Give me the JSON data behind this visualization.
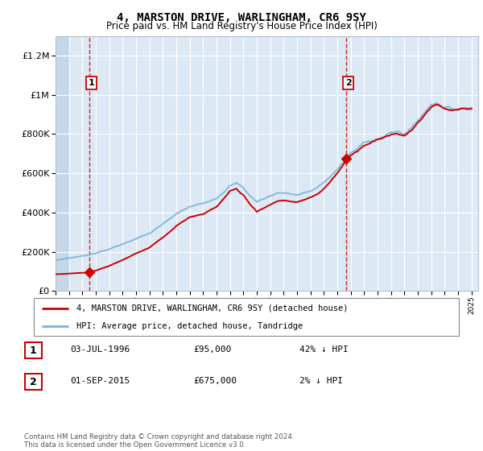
{
  "title": "4, MARSTON DRIVE, WARLINGHAM, CR6 9SY",
  "subtitle": "Price paid vs. HM Land Registry's House Price Index (HPI)",
  "legend_line1": "4, MARSTON DRIVE, WARLINGHAM, CR6 9SY (detached house)",
  "legend_line2": "HPI: Average price, detached house, Tandridge",
  "sale1_date": "03-JUL-1996",
  "sale1_price": 95000,
  "sale1_label": "42% ↓ HPI",
  "sale2_date": "01-SEP-2015",
  "sale2_price": 675000,
  "sale2_label": "2% ↓ HPI",
  "footer": "Contains HM Land Registry data © Crown copyright and database right 2024.\nThis data is licensed under the Open Government Licence v3.0.",
  "hpi_color": "#7ab3d9",
  "sale_color": "#cc0000",
  "marker_color": "#cc0000",
  "dashed_color": "#cc0000",
  "background_chart": "#dce9f5",
  "background_hatch": "#c5d8ea",
  "ylim_max": 1300000,
  "year_start": 1994,
  "year_end": 2025
}
